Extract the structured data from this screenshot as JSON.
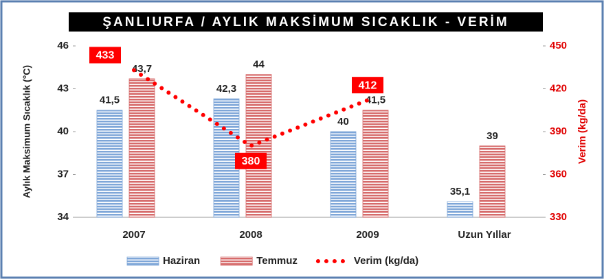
{
  "chart_data": {
    "type": "bar",
    "title": "ŞANLIURFA / AYLIK MAKSİMUM SICAKLIK - VERİM",
    "y_label": "Aylık Maksimum Sıcaklık (°C)",
    "y2_label": "Verim (kg/da)",
    "categories": [
      "2007",
      "2008",
      "2009",
      "Uzun Yıllar"
    ],
    "series": [
      {
        "name": "Haziran",
        "type": "bar",
        "color": "#7ea6d8",
        "values": [
          41.5,
          42.3,
          40,
          35.1
        ],
        "value_labels": [
          "41,5",
          "42,3",
          "40",
          "35,1"
        ]
      },
      {
        "name": "Temmuz",
        "type": "bar",
        "color": "#d66a6a",
        "values": [
          43.7,
          44,
          41.5,
          39
        ],
        "value_labels": [
          "43,7",
          "44",
          "41,5",
          "39"
        ]
      },
      {
        "name": "Verim (kg/da)",
        "type": "line",
        "axis": "y2",
        "color": "#ff0000",
        "values": [
          433,
          380,
          412,
          null
        ]
      }
    ],
    "ylim": [
      34,
      46
    ],
    "yticks": [
      34,
      37,
      40,
      43,
      46
    ],
    "y2lim": [
      330,
      450
    ],
    "y2ticks": [
      330,
      360,
      390,
      420,
      450
    ],
    "grid": false,
    "legend": "bottom"
  }
}
